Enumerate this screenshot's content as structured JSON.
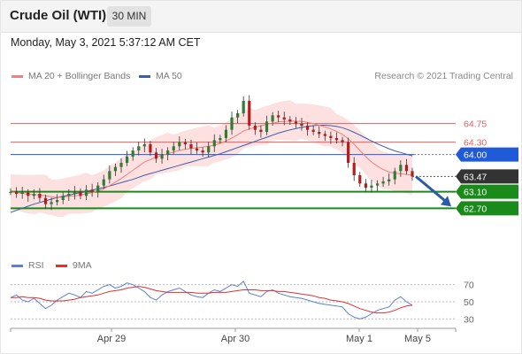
{
  "header": {
    "title": "Crude Oil (WTI)",
    "timeframe": "30 MIN"
  },
  "datetime": "Monday, May 3, 2021 5:37:12 AM CET",
  "legend": {
    "ma20_label": "MA 20 + Bollinger Bands",
    "ma50_label": "MA 50",
    "source": "Research © 2021 Trading Central",
    "ma20_color": "#f08080",
    "ma50_color": "#3a5fa8"
  },
  "rsi_legend": {
    "rsi_label": "RSI",
    "ma_label": "9MA",
    "rsi_color": "#5b7fd6",
    "ma_color": "#e03030"
  },
  "colors": {
    "support": "#1a8a1a",
    "resistance": "#e06060",
    "pivot": "#1f5bd6",
    "last": "#333333",
    "arrow": "#2a5aa8"
  },
  "chart_data": [
    {
      "type": "line",
      "panel": "price",
      "y_range": [
        61.7,
        65.6
      ],
      "x_ticks": [
        "Apr 29",
        "Apr 30",
        "May 1",
        "May 5"
      ],
      "levels": [
        {
          "label": "64.75",
          "value": 64.75,
          "kind": "resistance"
        },
        {
          "label": "64.30",
          "value": 64.3,
          "kind": "resistance"
        },
        {
          "label": "64.00",
          "value": 64.0,
          "kind": "pivot"
        },
        {
          "label": "63.47",
          "value": 63.47,
          "kind": "last"
        },
        {
          "label": "63.10",
          "value": 63.1,
          "kind": "support"
        },
        {
          "label": "62.70",
          "value": 62.7,
          "kind": "support"
        }
      ],
      "series": [
        {
          "name": "Price",
          "values": [
            63.1,
            63.05,
            63.08,
            63.0,
            63.05,
            62.95,
            62.8,
            62.85,
            62.9,
            63.0,
            63.05,
            63.1,
            63.0,
            63.15,
            63.1,
            63.25,
            63.4,
            63.6,
            63.7,
            63.8,
            63.95,
            64.1,
            64.2,
            64.25,
            64.05,
            63.9,
            64.0,
            64.1,
            64.2,
            64.3,
            64.25,
            64.15,
            64.1,
            64.05,
            64.2,
            64.35,
            64.4,
            64.6,
            64.9,
            65.0,
            65.3,
            64.7,
            64.6,
            64.55,
            64.8,
            64.95,
            64.9,
            64.85,
            64.8,
            64.75,
            64.7,
            64.6,
            64.55,
            64.5,
            64.45,
            64.4,
            64.35,
            64.3,
            63.8,
            63.5,
            63.3,
            63.2,
            63.25,
            63.3,
            63.35,
            63.4,
            63.6,
            63.75,
            63.6,
            63.47
          ]
        },
        {
          "name": "MA 20",
          "values": [
            63.1,
            63.08,
            63.06,
            63.04,
            63.03,
            63.02,
            63.0,
            62.98,
            62.96,
            62.97,
            62.99,
            63.0,
            63.02,
            63.05,
            63.08,
            63.12,
            63.17,
            63.25,
            63.33,
            63.42,
            63.52,
            63.62,
            63.72,
            63.82,
            63.88,
            63.94,
            63.98,
            64.02,
            64.06,
            64.1,
            64.13,
            64.15,
            64.17,
            64.18,
            64.2,
            64.23,
            64.27,
            64.33,
            64.4,
            64.48,
            64.57,
            64.62,
            64.66,
            64.7,
            64.73,
            64.76,
            64.79,
            64.8,
            64.81,
            64.81,
            64.8,
            64.78,
            64.75,
            64.71,
            64.67,
            64.62,
            64.56,
            64.49,
            64.38,
            64.25,
            64.1,
            63.95,
            63.82,
            63.72,
            63.64,
            63.58,
            63.55,
            63.54,
            63.52,
            63.5
          ]
        },
        {
          "name": "MA 50",
          "values": [
            62.6,
            62.65,
            62.7,
            62.75,
            62.8,
            62.84,
            62.88,
            62.92,
            62.96,
            62.99,
            63.02,
            63.05,
            63.08,
            63.11,
            63.14,
            63.17,
            63.2,
            63.24,
            63.28,
            63.32,
            63.36,
            63.4,
            63.45,
            63.5,
            63.54,
            63.58,
            63.62,
            63.66,
            63.7,
            63.74,
            63.78,
            63.82,
            63.86,
            63.9,
            63.94,
            63.98,
            64.02,
            64.07,
            64.12,
            64.17,
            64.22,
            64.27,
            64.32,
            64.37,
            64.42,
            64.47,
            64.52,
            64.56,
            64.6,
            64.63,
            64.66,
            64.68,
            64.7,
            64.71,
            64.71,
            64.7,
            64.68,
            64.65,
            64.6,
            64.54,
            64.47,
            64.4,
            64.33,
            64.26,
            64.2,
            64.14,
            64.09,
            64.05,
            64.01,
            63.97
          ]
        }
      ]
    },
    {
      "type": "line",
      "panel": "rsi",
      "y_range": [
        20,
        80
      ],
      "y_ticks": [
        "70",
        "50",
        "30"
      ],
      "series": [
        {
          "name": "RSI",
          "values": [
            55,
            58,
            52,
            50,
            54,
            48,
            42,
            46,
            52,
            56,
            60,
            58,
            55,
            62,
            60,
            64,
            68,
            70,
            66,
            68,
            72,
            70,
            66,
            62,
            55,
            52,
            58,
            62,
            64,
            66,
            62,
            58,
            56,
            55,
            60,
            64,
            62,
            66,
            70,
            68,
            74,
            60,
            58,
            56,
            62,
            64,
            60,
            58,
            56,
            55,
            54,
            52,
            50,
            48,
            47,
            46,
            45,
            44,
            36,
            32,
            30,
            32,
            36,
            40,
            42,
            44,
            52,
            56,
            50,
            46
          ]
        },
        {
          "name": "9MA",
          "values": [
            55,
            55,
            56,
            55,
            55,
            54,
            52,
            51,
            51,
            51,
            52,
            53,
            55,
            56,
            57,
            58,
            60,
            62,
            63,
            64,
            66,
            67,
            68,
            67,
            65,
            63,
            62,
            61,
            61,
            61,
            61,
            61,
            60,
            60,
            60,
            61,
            61,
            61,
            62,
            63,
            64,
            64,
            64,
            63,
            63,
            63,
            62,
            62,
            61,
            60,
            59,
            58,
            57,
            55,
            54,
            52,
            51,
            50,
            48,
            45,
            42,
            40,
            38,
            37,
            37,
            38,
            40,
            43,
            45,
            46
          ]
        }
      ]
    }
  ]
}
